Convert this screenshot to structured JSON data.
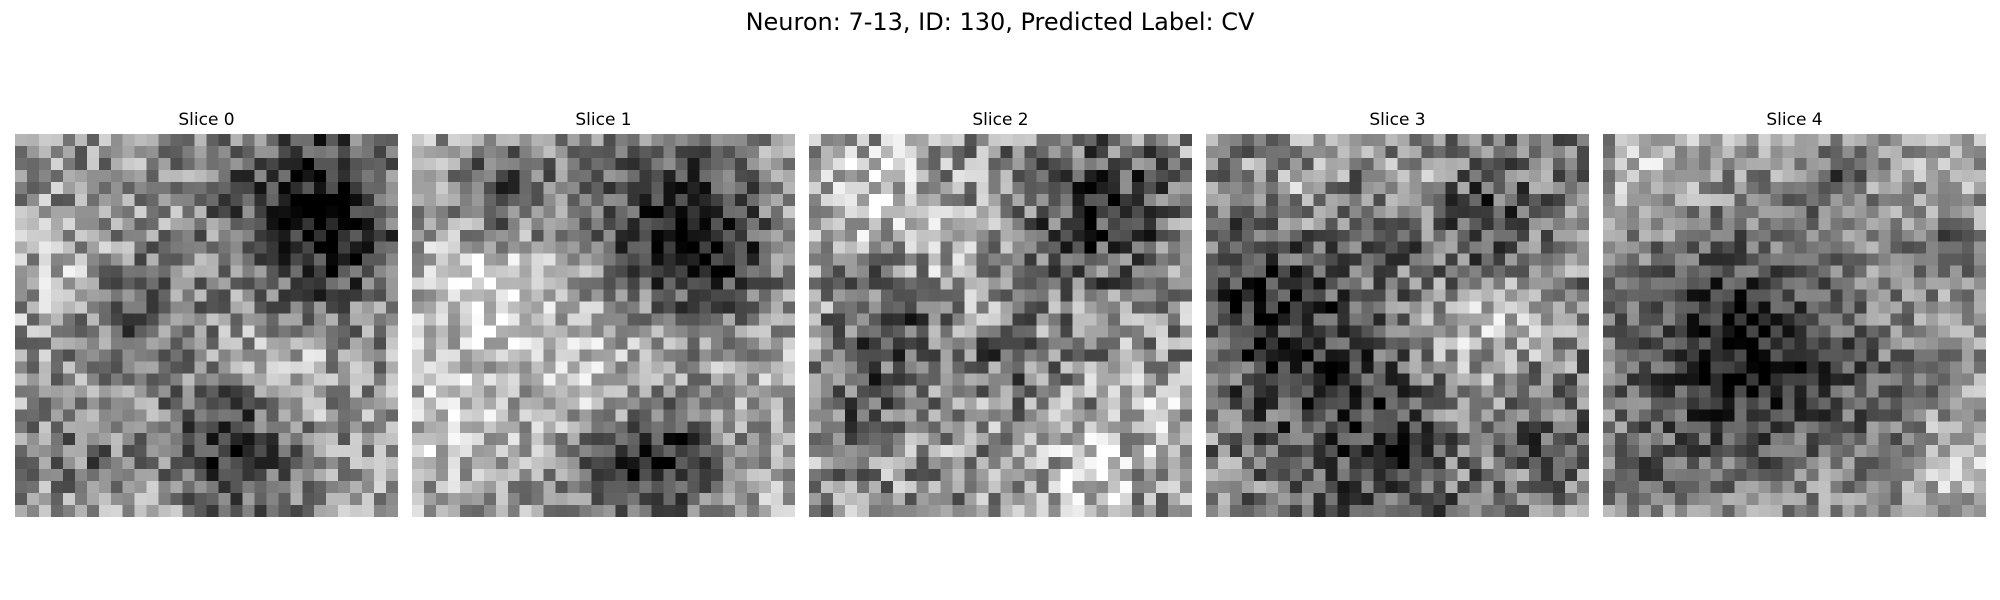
{
  "figure": {
    "title": "Neuron: 7-13, ID: 130, Predicted Label: CV",
    "colormap": "gray",
    "background": "#ffffff"
  },
  "slices": [
    {
      "label": "Slice 0",
      "description": "noisy grayscale crop, dark region upper-right, dark blobs lower-center"
    },
    {
      "label": "Slice 1",
      "description": "noisy grayscale crop, dark regions upper-left and upper-right, bright lower-left"
    },
    {
      "label": "Slice 2",
      "description": "noisy grayscale crop, bright upper-left, dark upper-right and middle-left"
    },
    {
      "label": "Slice 3",
      "description": "noisy grayscale crop, dark left half and lower area, bright right-middle"
    },
    {
      "label": "Slice 4",
      "description": "noisy grayscale crop, large dark circular region centered left-of-middle"
    }
  ]
}
